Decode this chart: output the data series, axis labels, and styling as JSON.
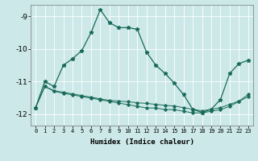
{
  "xlabel": "Humidex (Indice chaleur)",
  "background_color": "#cce8e8",
  "grid_color": "#ffffff",
  "line_color": "#1a6b5a",
  "xlim": [
    -0.5,
    23.5
  ],
  "ylim": [
    -12.35,
    -8.65
  ],
  "yticks": [
    -12,
    -11,
    -10,
    -9
  ],
  "xticks": [
    0,
    1,
    2,
    3,
    4,
    5,
    6,
    7,
    8,
    9,
    10,
    11,
    12,
    13,
    14,
    15,
    16,
    17,
    18,
    19,
    20,
    21,
    22,
    23
  ],
  "series1_x": [
    0,
    1,
    2,
    3,
    4,
    5,
    6,
    7,
    8,
    9,
    10,
    11,
    12,
    13,
    14,
    15,
    16,
    17,
    18,
    19,
    20,
    21,
    22,
    23
  ],
  "series1_y": [
    -11.8,
    -11.0,
    -11.15,
    -10.5,
    -10.3,
    -10.05,
    -9.5,
    -8.8,
    -9.2,
    -9.35,
    -9.35,
    -9.4,
    -10.1,
    -10.5,
    -10.75,
    -11.05,
    -11.4,
    -11.85,
    -11.95,
    -11.85,
    -11.55,
    -10.75,
    -10.45,
    -10.35
  ],
  "series2_x": [
    0,
    1,
    2,
    3,
    4,
    5,
    6,
    7,
    8,
    9,
    10,
    11,
    12,
    13,
    14,
    15,
    16,
    17,
    18,
    19,
    20,
    21,
    22,
    23
  ],
  "series2_y": [
    -11.8,
    -11.15,
    -11.28,
    -11.33,
    -11.38,
    -11.43,
    -11.48,
    -11.53,
    -11.58,
    -11.6,
    -11.62,
    -11.65,
    -11.67,
    -11.7,
    -11.73,
    -11.75,
    -11.8,
    -11.85,
    -11.9,
    -11.85,
    -11.8,
    -11.7,
    -11.6,
    -11.4
  ],
  "series3_x": [
    0,
    1,
    2,
    3,
    4,
    5,
    6,
    7,
    8,
    9,
    10,
    11,
    12,
    13,
    14,
    15,
    16,
    17,
    18,
    19,
    20,
    21,
    22,
    23
  ],
  "series3_y": [
    -11.8,
    -11.15,
    -11.3,
    -11.36,
    -11.41,
    -11.46,
    -11.51,
    -11.56,
    -11.61,
    -11.66,
    -11.71,
    -11.76,
    -11.81,
    -11.81,
    -11.86,
    -11.86,
    -11.91,
    -11.96,
    -11.96,
    -11.91,
    -11.86,
    -11.76,
    -11.61,
    -11.46
  ]
}
